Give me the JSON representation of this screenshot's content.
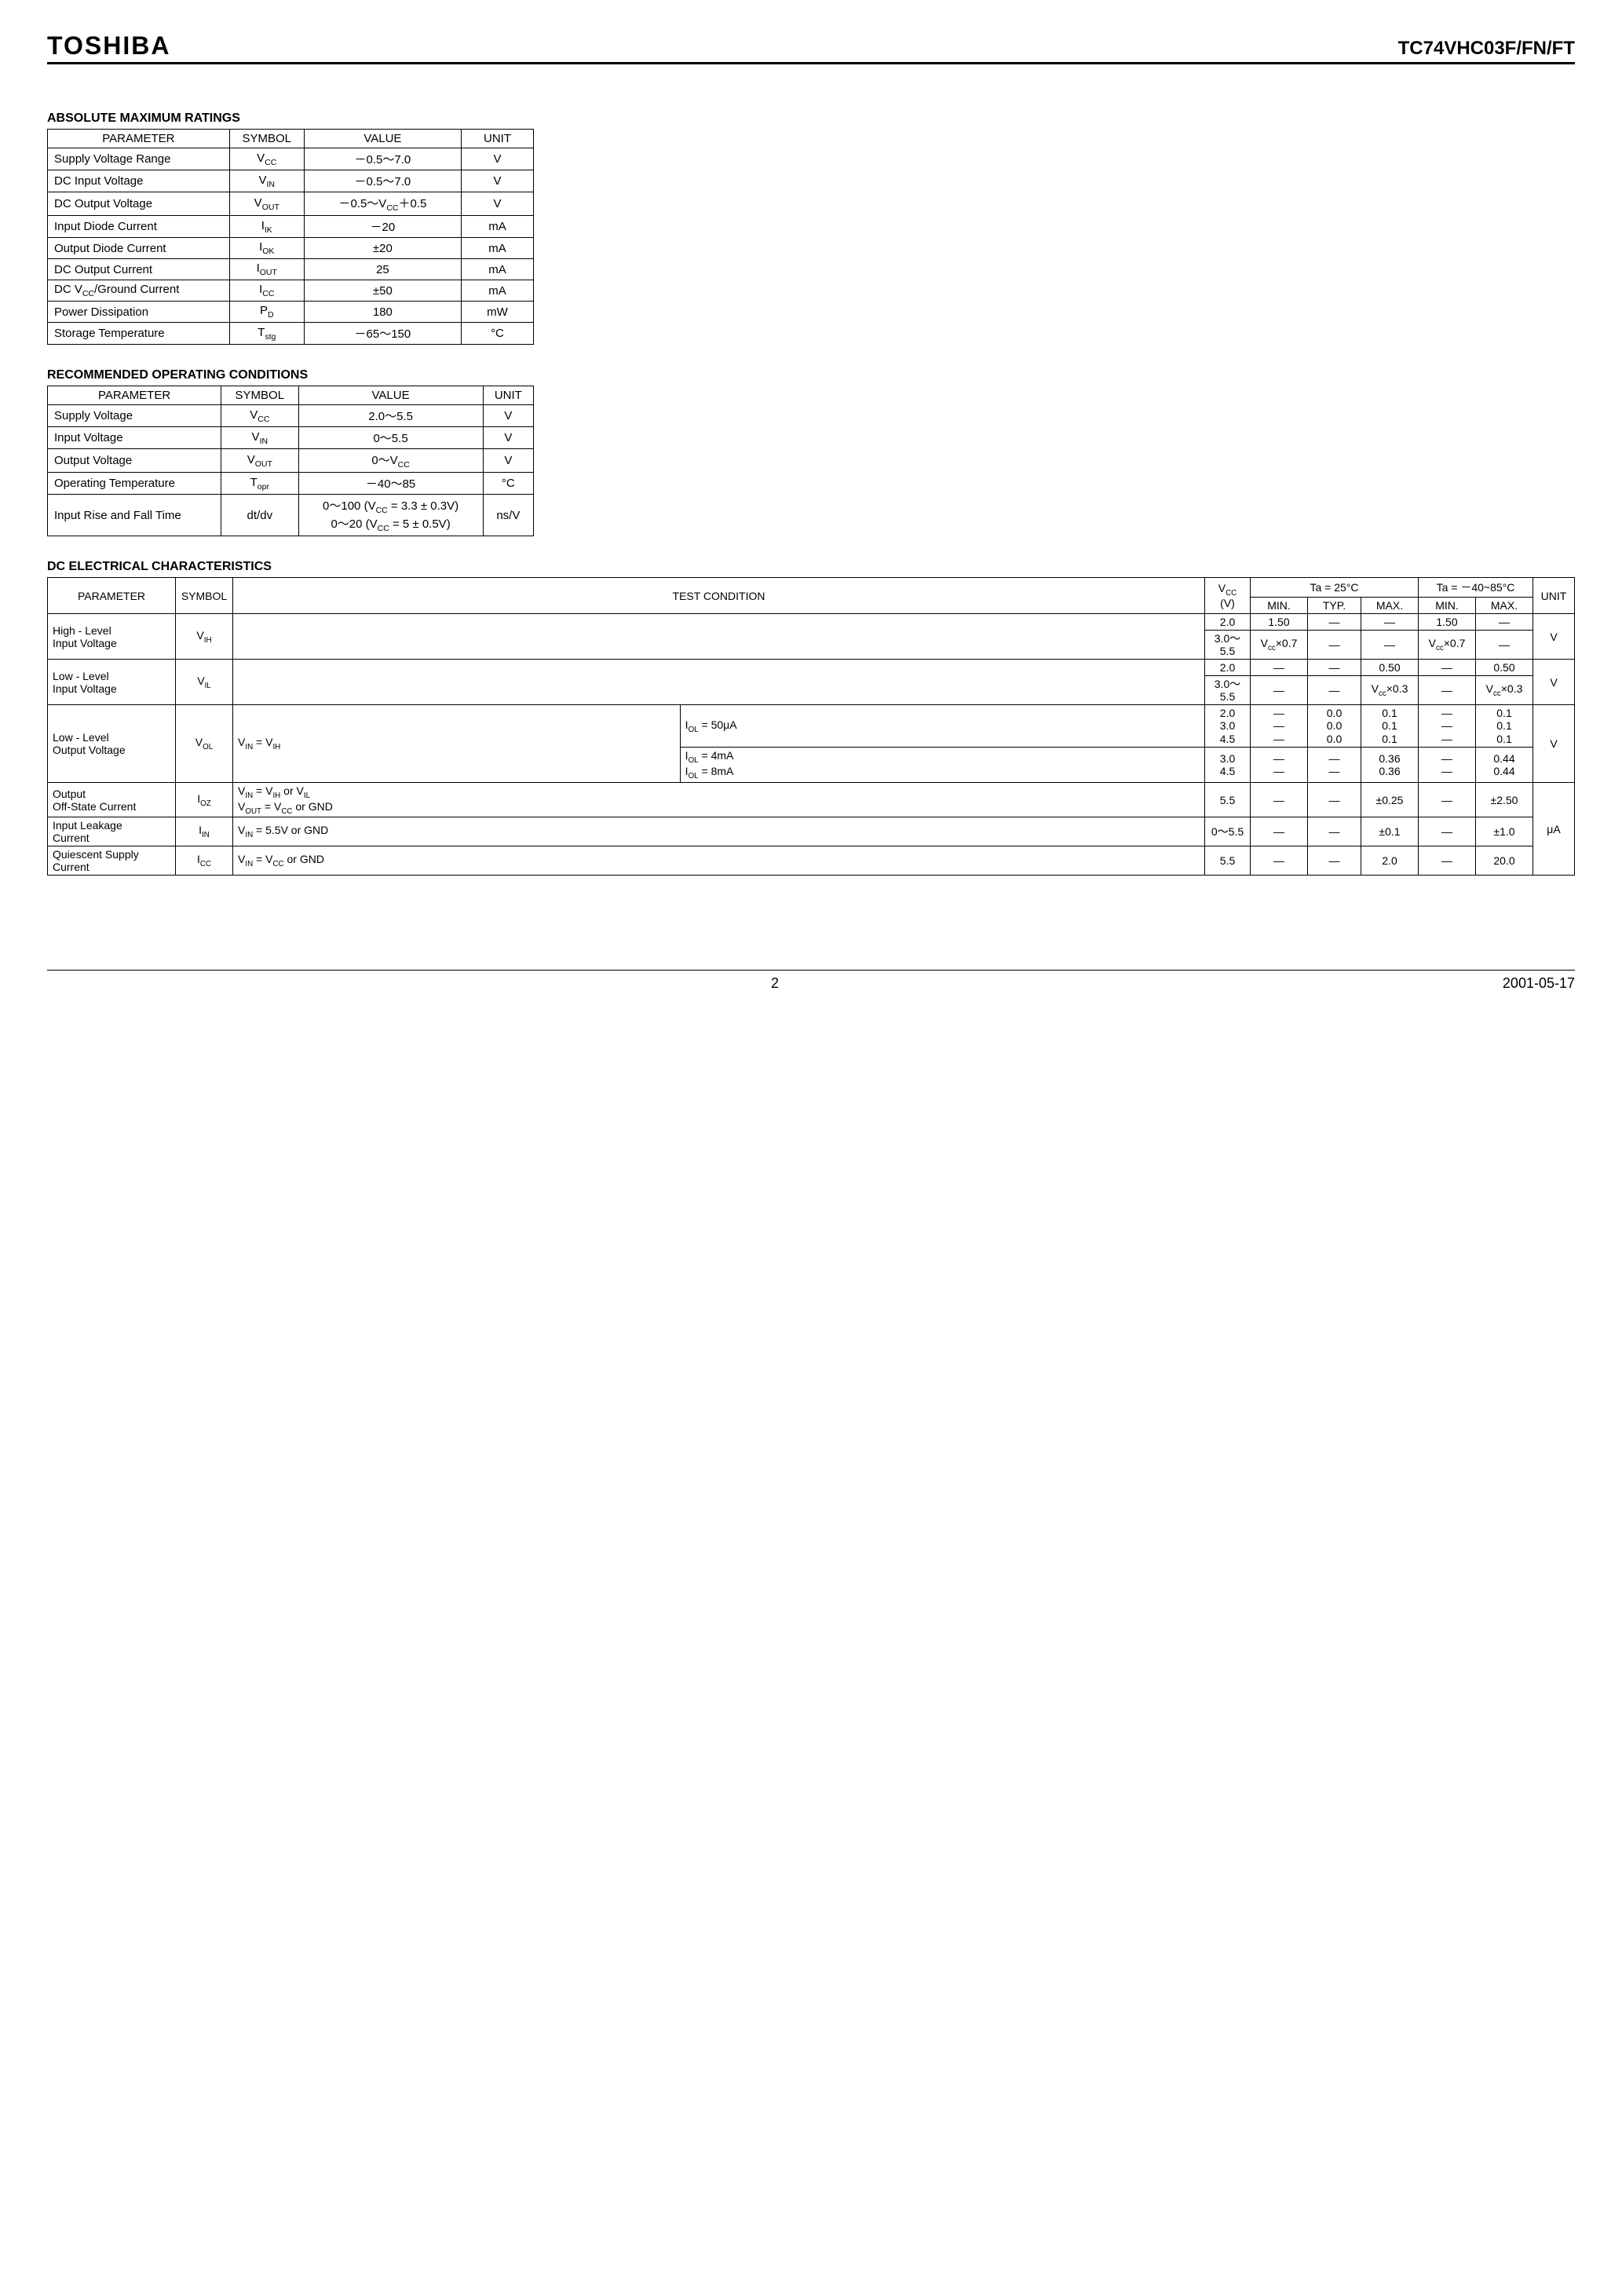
{
  "brand": "TOSHIBA",
  "part_number": "TC74VHC03F/FN/FT",
  "sections": {
    "abs_max": {
      "title": "ABSOLUTE MAXIMUM RATINGS",
      "headers": [
        "PARAMETER",
        "SYMBOL",
        "VALUE",
        "UNIT"
      ],
      "rows": [
        {
          "param": "Supply Voltage Range",
          "symbol_html": "V<span class='sub'>CC</span>",
          "value": "－0.5～7.0",
          "unit": "V"
        },
        {
          "param": "DC Input Voltage",
          "symbol_html": "V<span class='sub'>IN</span>",
          "value": "－0.5～7.0",
          "unit": "V"
        },
        {
          "param": "DC Output Voltage",
          "symbol_html": "V<span class='sub'>OUT</span>",
          "value": "－0.5～V<span class='sub'>CC</span>＋0.5",
          "unit": "V"
        },
        {
          "param": "Input Diode Current",
          "symbol_html": "I<span class='sub'>IK</span>",
          "value": "－20",
          "unit": "mA"
        },
        {
          "param": "Output Diode Current",
          "symbol_html": "I<span class='sub'>OK</span>",
          "value": "±20",
          "unit": "mA"
        },
        {
          "param": "DC Output Current",
          "symbol_html": "I<span class='sub'>OUT</span>",
          "value": "25",
          "unit": "mA"
        },
        {
          "param": "DC V<span class='sub'>CC</span>/Ground Current",
          "symbol_html": "I<span class='sub'>CC</span>",
          "value": "±50",
          "unit": "mA"
        },
        {
          "param": "Power Dissipation",
          "symbol_html": "P<span class='sub'>D</span>",
          "value": "180",
          "unit": "mW"
        },
        {
          "param": "Storage Temperature",
          "symbol_html": "T<span class='sub'>stg</span>",
          "value": "－65～150",
          "unit": "°C"
        }
      ]
    },
    "recommended": {
      "title": "RECOMMENDED OPERATING CONDITIONS",
      "headers": [
        "PARAMETER",
        "SYMBOL",
        "VALUE",
        "UNIT"
      ],
      "rows": [
        {
          "param": "Supply Voltage",
          "symbol_html": "V<span class='sub'>CC</span>",
          "value": "2.0～5.5",
          "unit": "V"
        },
        {
          "param": "Input Voltage",
          "symbol_html": "V<span class='sub'>IN</span>",
          "value": "0～5.5",
          "unit": "V"
        },
        {
          "param": "Output Voltage",
          "symbol_html": "V<span class='sub'>OUT</span>",
          "value": "0～V<span class='sub'>CC</span>",
          "unit": "V"
        },
        {
          "param": "Operating Temperature",
          "symbol_html": "T<span class='sub'>opr</span>",
          "value": "－40～85",
          "unit": "°C"
        },
        {
          "param": "Input Rise and Fall Time",
          "symbol_html": "dt/dv",
          "value": "0～100 (V<span class='sub'>CC</span> = 3.3 ± 0.3V)<br>0～20 (V<span class='sub'>CC</span> =  5 ± 0.5V)",
          "unit": "ns/V"
        }
      ]
    },
    "dc_char": {
      "title": "DC ELECTRICAL CHARACTERISTICS",
      "top_headers": {
        "parameter": "PARAMETER",
        "symbol": "SYMBOL",
        "test_cond": "TEST CONDITION",
        "vcc": "V<span class='sub'>CC</span><br>(V)",
        "ta25": "Ta = 25°C",
        "taRange": "Ta = －40~85°C",
        "unit": "UNIT",
        "min": "MIN.",
        "typ": "TYP.",
        "max": "MAX."
      }
    }
  },
  "footer": {
    "page": "2",
    "date": "2001-05-17"
  },
  "colors": {
    "text": "#000000",
    "border": "#000000",
    "background": "#ffffff"
  }
}
